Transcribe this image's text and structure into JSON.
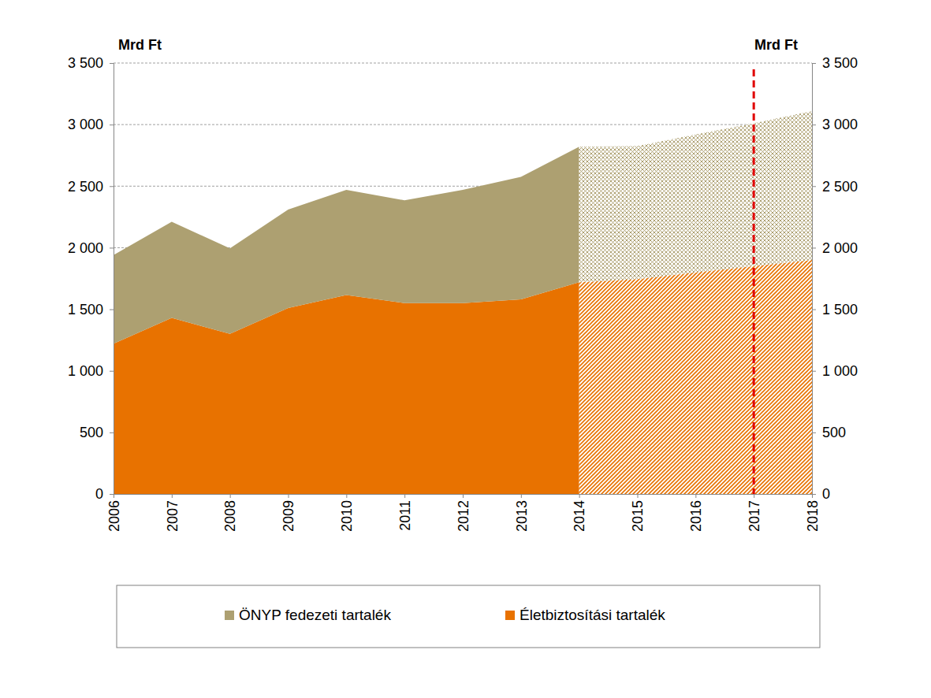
{
  "chart_data": {
    "type": "area",
    "stacked": true,
    "y_label": "Mrd Ft",
    "y2_label": "Mrd Ft",
    "x": [
      2006,
      2007,
      2008,
      2009,
      2010,
      2011,
      2012,
      2013,
      2014,
      2015,
      2016,
      2017,
      2018
    ],
    "xlim": [
      2006,
      2018
    ],
    "xticks": [
      2006,
      2007,
      2008,
      2009,
      2010,
      2011,
      2012,
      2013,
      2014,
      2015,
      2016,
      2017,
      2018
    ],
    "ylim": [
      0,
      3500
    ],
    "yticks": [
      0,
      500,
      {
        "value": 1000,
        "label": "1 000"
      },
      {
        "value": 1500,
        "label": "1 500"
      },
      {
        "value": 2000,
        "label": "2 000"
      },
      {
        "value": 2500,
        "label": "2 500"
      },
      {
        "value": 3000,
        "label": "3 000"
      },
      {
        "value": 3500,
        "label": "3 500"
      }
    ],
    "y2lim": [
      0,
      3500
    ],
    "y2ticks": [
      0,
      500,
      {
        "value": 1000,
        "label": "1 000"
      },
      {
        "value": 1500,
        "label": "1 500"
      },
      {
        "value": 2000,
        "label": "2 000"
      },
      {
        "value": 2500,
        "label": "2 500"
      },
      {
        "value": 3000,
        "label": "3 000"
      },
      {
        "value": 3500,
        "label": "3 500"
      }
    ],
    "grid": true,
    "legend": "bottom",
    "forecast_from": 2014,
    "reference_x": 2017,
    "series": [
      {
        "name": "ÖNYP fedezeti tartalék",
        "color": "#ada071",
        "values": [
          720,
          780,
          695,
          800,
          855,
          835,
          920,
          995,
          1100,
          1080,
          1120,
          1160,
          1210
        ]
      },
      {
        "name": "Életbiztosítási tartalék",
        "color": "#e87200",
        "values": [
          1220,
          1430,
          1300,
          1510,
          1615,
          1550,
          1550,
          1580,
          1720,
          1745,
          1800,
          1850,
          1900
        ]
      }
    ]
  }
}
